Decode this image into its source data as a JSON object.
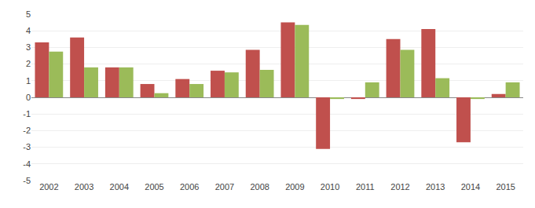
{
  "chart_data": {
    "type": "bar",
    "categories": [
      "2002",
      "2003",
      "2004",
      "2005",
      "2006",
      "2007",
      "2008",
      "2009",
      "2010",
      "2011",
      "2012",
      "2013",
      "2014",
      "2015"
    ],
    "series": [
      {
        "color": "#C0504D",
        "values": [
          3.3,
          3.6,
          1.8,
          0.8,
          1.1,
          1.6,
          2.85,
          4.5,
          -3.1,
          -0.1,
          3.5,
          4.1,
          -2.7,
          0.2
        ]
      },
      {
        "color": "#9BBB59",
        "values": [
          2.75,
          1.8,
          1.8,
          0.25,
          0.8,
          1.5,
          1.65,
          4.35,
          -0.1,
          0.9,
          2.85,
          1.15,
          -0.1,
          0.9
        ]
      }
    ],
    "ylim": [
      -5,
      5
    ],
    "yticks": [
      -5,
      -4,
      -3,
      -2,
      -1,
      0,
      1,
      2,
      3,
      4,
      5
    ],
    "grid": true
  }
}
